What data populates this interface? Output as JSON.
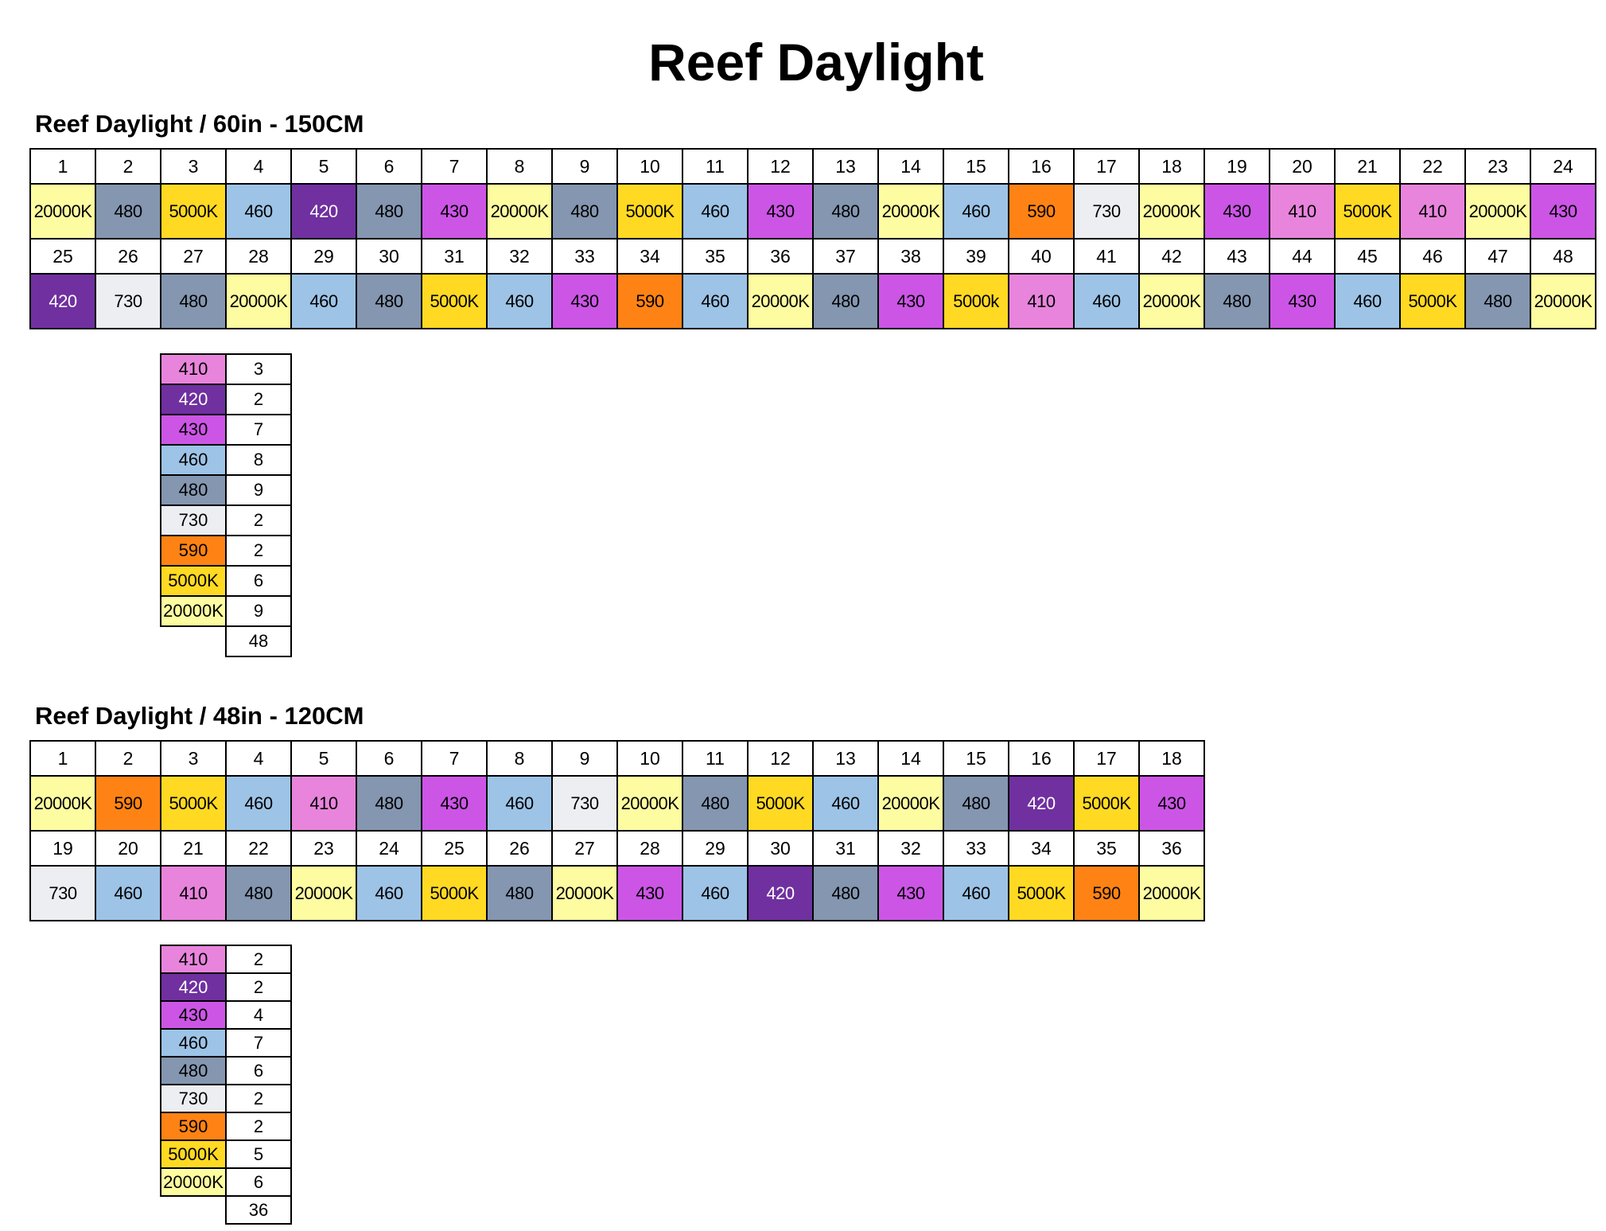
{
  "title": "Reef Daylight",
  "colors": {
    "410": "#e884dc",
    "420": "#7030a0",
    "430": "#cc55e6",
    "460": "#9dc3e6",
    "480": "#8496b0",
    "730": "#eceef2",
    "590": "#ff8314",
    "5000K": "#ffd922",
    "5000k": "#ffd922",
    "20000K": "#fdfca0"
  },
  "sections": [
    {
      "title": "Reef Daylight / 60in - 150CM",
      "rows": [
        {
          "numbers": [
            "1",
            "2",
            "3",
            "4",
            "5",
            "6",
            "7",
            "8",
            "9",
            "10",
            "11",
            "12",
            "13",
            "14",
            "15",
            "16",
            "17",
            "18",
            "19",
            "20",
            "21",
            "22",
            "23",
            "24"
          ],
          "chips": [
            "20000K",
            "480",
            "5000K",
            "460",
            "420",
            "480",
            "430",
            "20000K",
            "480",
            "5000K",
            "460",
            "430",
            "480",
            "20000K",
            "460",
            "590",
            "730",
            "20000K",
            "430",
            "410",
            "5000K",
            "410",
            "20000K",
            "430"
          ]
        },
        {
          "numbers": [
            "25",
            "26",
            "27",
            "28",
            "29",
            "30",
            "31",
            "32",
            "33",
            "34",
            "35",
            "36",
            "37",
            "38",
            "39",
            "40",
            "41",
            "42",
            "43",
            "44",
            "45",
            "46",
            "47",
            "48"
          ],
          "chips": [
            "420",
            "730",
            "480",
            "20000K",
            "460",
            "480",
            "5000K",
            "460",
            "430",
            "590",
            "460",
            "20000K",
            "480",
            "430",
            "5000k",
            "410",
            "460",
            "20000K",
            "480",
            "430",
            "460",
            "5000K",
            "480",
            "20000K"
          ]
        }
      ],
      "summary": [
        {
          "chip": "410",
          "count": "3"
        },
        {
          "chip": "420",
          "count": "2"
        },
        {
          "chip": "430",
          "count": "7"
        },
        {
          "chip": "460",
          "count": "8"
        },
        {
          "chip": "480",
          "count": "9"
        },
        {
          "chip": "730",
          "count": "2"
        },
        {
          "chip": "590",
          "count": "2"
        },
        {
          "chip": "5000K",
          "count": "6"
        },
        {
          "chip": "20000K",
          "count": "9"
        }
      ],
      "total": "48"
    },
    {
      "title": "Reef Daylight / 48in - 120CM",
      "rows": [
        {
          "numbers": [
            "1",
            "2",
            "3",
            "4",
            "5",
            "6",
            "7",
            "8",
            "9",
            "10",
            "11",
            "12",
            "13",
            "14",
            "15",
            "16",
            "17",
            "18"
          ],
          "chips": [
            "20000K",
            "590",
            "5000K",
            "460",
            "410",
            "480",
            "430",
            "460",
            "730",
            "20000K",
            "480",
            "5000K",
            "460",
            "20000K",
            "480",
            "420",
            "5000K",
            "430"
          ]
        },
        {
          "numbers": [
            "19",
            "20",
            "21",
            "22",
            "23",
            "24",
            "25",
            "26",
            "27",
            "28",
            "29",
            "30",
            "31",
            "32",
            "33",
            "34",
            "35",
            "36"
          ],
          "chips": [
            "730",
            "460",
            "410",
            "480",
            "20000K",
            "460",
            "5000K",
            "480",
            "20000K",
            "430",
            "460",
            "420",
            "480",
            "430",
            "460",
            "5000K",
            "590",
            "20000K"
          ]
        }
      ],
      "summary": [
        {
          "chip": "410",
          "count": "2"
        },
        {
          "chip": "420",
          "count": "2"
        },
        {
          "chip": "430",
          "count": "4"
        },
        {
          "chip": "460",
          "count": "7"
        },
        {
          "chip": "480",
          "count": "6"
        },
        {
          "chip": "730",
          "count": "2"
        },
        {
          "chip": "590",
          "count": "2"
        },
        {
          "chip": "5000K",
          "count": "5"
        },
        {
          "chip": "20000K",
          "count": "6"
        }
      ],
      "total": "36"
    }
  ]
}
